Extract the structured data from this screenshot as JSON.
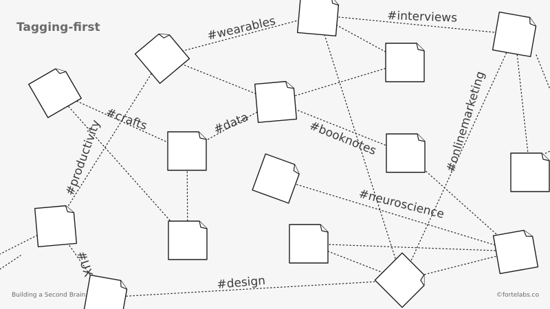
{
  "title": "Tagging-first",
  "footer": {
    "left": "Building a Second Brain",
    "right": "©fortelabs.co"
  },
  "colors": {
    "background": "#f6f6f6",
    "stroke": "#1e1e1e",
    "note_fill": "#ffffff",
    "text": "#3a3a3a",
    "muted_text": "#6a6a6a"
  },
  "notes": [
    {
      "id": "n1"
    },
    {
      "id": "n2"
    },
    {
      "id": "n3"
    },
    {
      "id": "n4"
    },
    {
      "id": "n5"
    },
    {
      "id": "n6"
    },
    {
      "id": "n7"
    },
    {
      "id": "n8"
    },
    {
      "id": "n9"
    },
    {
      "id": "n10"
    },
    {
      "id": "n11"
    },
    {
      "id": "n12"
    },
    {
      "id": "n13"
    },
    {
      "id": "n14"
    },
    {
      "id": "n15"
    },
    {
      "id": "n16"
    },
    {
      "id": "n17"
    }
  ],
  "tags": {
    "wearables": "#wearables",
    "interviews": "#interviews",
    "crafts": "#crafts",
    "data": "#data",
    "booknotes": "#booknotes",
    "productivity": "#productivity",
    "onlinemarketing": "#onlinemarketing",
    "neuroscience": "#neuroscience",
    "ux": "#UX",
    "design": "#design"
  }
}
